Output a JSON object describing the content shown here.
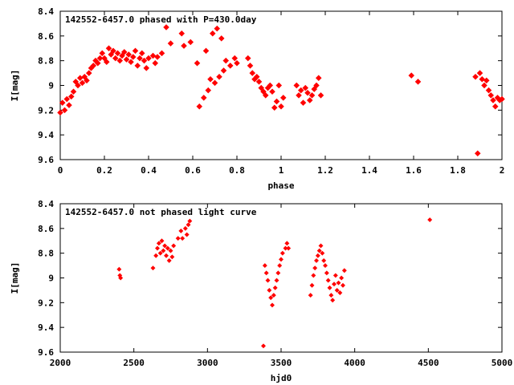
{
  "chart_data": [
    {
      "type": "scatter",
      "title": "142552-6457.0 phased with P=430.0day",
      "xlabel": "phase",
      "ylabel": "I[mag]",
      "xlim": [
        0,
        2
      ],
      "ylim": [
        8.4,
        9.6
      ],
      "y_inverted": true,
      "grid": false,
      "color": "#ff0000",
      "marker": "filled-diamond-large",
      "xticks": [
        "0",
        "0.2",
        "0.4",
        "0.6",
        "0.8",
        "1",
        "1.2",
        "1.4",
        "1.6",
        "1.8",
        "2"
      ],
      "yticks": [
        "8.4",
        "8.6",
        "8.8",
        "9",
        "9.2",
        "9.4",
        "9.6"
      ],
      "series": [
        {
          "points": [
            [
              0.0,
              9.22
            ],
            [
              0.01,
              9.14
            ],
            [
              0.02,
              9.2
            ],
            [
              0.03,
              9.11
            ],
            [
              0.04,
              9.16
            ],
            [
              0.05,
              9.09
            ],
            [
              0.06,
              9.05
            ],
            [
              0.07,
              8.97
            ],
            [
              0.08,
              9.0
            ],
            [
              0.09,
              8.94
            ],
            [
              0.1,
              8.98
            ],
            [
              0.11,
              8.93
            ],
            [
              0.12,
              8.96
            ],
            [
              0.13,
              8.9
            ],
            [
              0.14,
              8.86
            ],
            [
              0.15,
              8.84
            ],
            [
              0.16,
              8.8
            ],
            [
              0.17,
              8.82
            ],
            [
              0.18,
              8.78
            ],
            [
              0.19,
              8.74
            ],
            [
              0.2,
              8.78
            ],
            [
              0.21,
              8.81
            ],
            [
              0.22,
              8.7
            ],
            [
              0.23,
              8.75
            ],
            [
              0.24,
              8.72
            ],
            [
              0.25,
              8.78
            ],
            [
              0.26,
              8.74
            ],
            [
              0.27,
              8.8
            ],
            [
              0.28,
              8.76
            ],
            [
              0.29,
              8.73
            ],
            [
              0.3,
              8.79
            ],
            [
              0.31,
              8.75
            ],
            [
              0.32,
              8.81
            ],
            [
              0.33,
              8.77
            ],
            [
              0.34,
              8.72
            ],
            [
              0.35,
              8.84
            ],
            [
              0.36,
              8.78
            ],
            [
              0.37,
              8.74
            ],
            [
              0.38,
              8.8
            ],
            [
              0.39,
              8.86
            ],
            [
              0.4,
              8.78
            ],
            [
              0.42,
              8.76
            ],
            [
              0.43,
              8.82
            ],
            [
              0.44,
              8.77
            ],
            [
              0.46,
              8.74
            ],
            [
              0.48,
              8.53
            ],
            [
              0.5,
              8.66
            ],
            [
              0.55,
              8.58
            ],
            [
              0.56,
              8.68
            ],
            [
              0.59,
              8.65
            ],
            [
              0.62,
              8.82
            ],
            [
              0.63,
              9.17
            ],
            [
              0.65,
              9.1
            ],
            [
              0.66,
              8.72
            ],
            [
              0.67,
              9.04
            ],
            [
              0.68,
              8.95
            ],
            [
              0.69,
              8.58
            ],
            [
              0.7,
              8.98
            ],
            [
              0.71,
              8.54
            ],
            [
              0.72,
              8.93
            ],
            [
              0.73,
              8.62
            ],
            [
              0.74,
              8.88
            ],
            [
              0.75,
              8.8
            ],
            [
              0.77,
              8.84
            ],
            [
              0.79,
              8.78
            ],
            [
              0.8,
              8.82
            ],
            [
              0.85,
              8.78
            ],
            [
              0.86,
              8.84
            ],
            [
              0.87,
              8.9
            ],
            [
              0.88,
              8.95
            ],
            [
              0.89,
              8.93
            ],
            [
              0.9,
              8.97
            ],
            [
              0.91,
              9.02
            ],
            [
              0.92,
              9.05
            ],
            [
              0.93,
              9.08
            ],
            [
              0.94,
              9.02
            ],
            [
              0.95,
              9.0
            ],
            [
              0.96,
              9.05
            ],
            [
              0.97,
              9.18
            ],
            [
              0.98,
              9.13
            ],
            [
              0.99,
              9.0
            ],
            [
              1.0,
              9.17
            ],
            [
              1.01,
              9.1
            ],
            [
              1.07,
              9.0
            ],
            [
              1.08,
              9.08
            ],
            [
              1.09,
              9.04
            ],
            [
              1.1,
              9.14
            ],
            [
              1.11,
              9.02
            ],
            [
              1.12,
              9.06
            ],
            [
              1.13,
              9.12
            ],
            [
              1.14,
              9.08
            ],
            [
              1.15,
              9.03
            ],
            [
              1.16,
              9.0
            ],
            [
              1.17,
              8.94
            ],
            [
              1.18,
              9.08
            ],
            [
              1.59,
              8.92
            ],
            [
              1.62,
              8.97
            ],
            [
              1.88,
              8.93
            ],
            [
              1.89,
              9.55
            ],
            [
              1.9,
              8.9
            ],
            [
              1.91,
              8.95
            ],
            [
              1.92,
              9.0
            ],
            [
              1.93,
              8.96
            ],
            [
              1.94,
              9.04
            ],
            [
              1.95,
              9.08
            ],
            [
              1.96,
              9.12
            ],
            [
              1.97,
              9.17
            ],
            [
              1.98,
              9.1
            ],
            [
              1.99,
              9.12
            ],
            [
              2.0,
              9.11
            ]
          ]
        }
      ]
    },
    {
      "type": "scatter",
      "title": "142552-6457.0 not phased light curve",
      "xlabel": "hjd0",
      "ylabel": "I[mag]",
      "xlim": [
        2000,
        5000
      ],
      "ylim": [
        8.4,
        9.6
      ],
      "y_inverted": true,
      "grid": false,
      "color": "#ff0000",
      "marker": "filled-diamond-small",
      "xticks": [
        "2000",
        "2500",
        "3000",
        "3500",
        "4000",
        "4500",
        "5000"
      ],
      "yticks": [
        "8.4",
        "8.6",
        "8.8",
        "9",
        "9.2",
        "9.4",
        "9.6"
      ],
      "series": [
        {
          "points": [
            [
              2400,
              8.93
            ],
            [
              2405,
              8.98
            ],
            [
              2410,
              9.0
            ],
            [
              2630,
              8.92
            ],
            [
              2650,
              8.82
            ],
            [
              2660,
              8.76
            ],
            [
              2670,
              8.72
            ],
            [
              2680,
              8.8
            ],
            [
              2690,
              8.7
            ],
            [
              2700,
              8.78
            ],
            [
              2710,
              8.74
            ],
            [
              2720,
              8.82
            ],
            [
              2730,
              8.76
            ],
            [
              2740,
              8.86
            ],
            [
              2750,
              8.78
            ],
            [
              2760,
              8.83
            ],
            [
              2770,
              8.74
            ],
            [
              2800,
              8.68
            ],
            [
              2820,
              8.62
            ],
            [
              2830,
              8.68
            ],
            [
              2850,
              8.6
            ],
            [
              2860,
              8.65
            ],
            [
              2870,
              8.57
            ],
            [
              2880,
              8.54
            ],
            [
              3380,
              9.55
            ],
            [
              3390,
              8.9
            ],
            [
              3400,
              8.96
            ],
            [
              3410,
              9.02
            ],
            [
              3420,
              9.1
            ],
            [
              3430,
              9.16
            ],
            [
              3440,
              9.22
            ],
            [
              3450,
              9.14
            ],
            [
              3460,
              9.08
            ],
            [
              3470,
              9.02
            ],
            [
              3480,
              8.96
            ],
            [
              3490,
              8.9
            ],
            [
              3500,
              8.85
            ],
            [
              3510,
              8.8
            ],
            [
              3530,
              8.76
            ],
            [
              3540,
              8.72
            ],
            [
              3550,
              8.76
            ],
            [
              3700,
              9.14
            ],
            [
              3710,
              9.06
            ],
            [
              3720,
              8.98
            ],
            [
              3730,
              8.92
            ],
            [
              3740,
              8.86
            ],
            [
              3750,
              8.82
            ],
            [
              3760,
              8.78
            ],
            [
              3770,
              8.74
            ],
            [
              3780,
              8.8
            ],
            [
              3790,
              8.86
            ],
            [
              3800,
              8.9
            ],
            [
              3810,
              8.96
            ],
            [
              3820,
              9.02
            ],
            [
              3830,
              9.08
            ],
            [
              3840,
              9.14
            ],
            [
              3850,
              9.18
            ],
            [
              3860,
              9.05
            ],
            [
              3870,
              8.98
            ],
            [
              3880,
              9.1
            ],
            [
              3890,
              9.04
            ],
            [
              3900,
              9.12
            ],
            [
              3910,
              9.0
            ],
            [
              3920,
              9.06
            ],
            [
              3930,
              8.94
            ],
            [
              4510,
              8.53
            ]
          ]
        }
      ]
    }
  ]
}
